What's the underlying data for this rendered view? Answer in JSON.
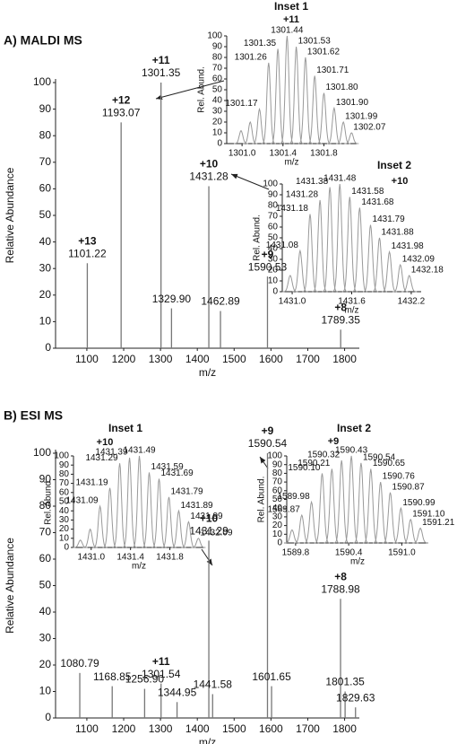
{
  "chart_data": [
    {
      "type": "spectrum",
      "title": "A) MALDI MS",
      "x_label": "m/z",
      "y_label": "Relative Abundance",
      "xlim": [
        1015,
        1840
      ],
      "ylim": [
        0,
        100
      ],
      "xticks": [
        1100,
        1200,
        1300,
        1400,
        1500,
        1600,
        1700,
        1800
      ],
      "yticks": [
        0,
        10,
        20,
        30,
        40,
        50,
        60,
        70,
        80,
        90,
        100
      ],
      "x": [
        1101.22,
        1193.07,
        1301.35,
        1329.9,
        1431.28,
        1462.89,
        1590.53,
        1789.35
      ],
      "values": [
        32,
        85,
        100,
        15,
        61,
        14,
        27,
        7
      ],
      "peak_labels": [
        "1101.22",
        "1193.07",
        "1301.35",
        "1329.90",
        "1431.28",
        "1462.89",
        "1590.53",
        "1789.35"
      ],
      "charges": [
        "+13",
        "+12",
        "+11",
        null,
        "+10",
        null,
        "+9",
        "+8"
      ],
      "color": "#777777"
    },
    {
      "type": "isotope",
      "title": "Inset 1",
      "charge": "+11",
      "x_label": "m/z",
      "y_label": "Rel. Abund.",
      "xlim": [
        1300.85,
        1302.12
      ],
      "ylim": [
        0,
        100
      ],
      "xticks": [
        {
          "value": 1301.0,
          "label": "1301.0"
        },
        1301.4,
        1301.8
      ],
      "yticks": [
        0,
        10,
        20,
        30,
        40,
        50,
        60,
        70,
        80,
        90,
        100
      ],
      "x": [
        1300.99,
        1301.08,
        1301.17,
        1301.26,
        1301.35,
        1301.44,
        1301.53,
        1301.62,
        1301.71,
        1301.8,
        1301.9,
        1301.99,
        1302.07
      ],
      "values": [
        12,
        20,
        32,
        75,
        88,
        100,
        90,
        80,
        63,
        47,
        33,
        20,
        10
      ],
      "peak_labels": [
        null,
        null,
        "1301.17",
        "1301.26",
        "1301.35",
        "1301.44",
        "1301.53",
        "1301.62",
        "1301.71",
        "1301.80",
        "1301.90",
        "1301.99",
        "1302.07"
      ],
      "color": "#999999"
    },
    {
      "type": "isotope",
      "title": "Inset 2",
      "charge": "+10",
      "x_label": "m/z",
      "y_label": "Rel. Abund.",
      "xlim": [
        1430.9,
        1432.3
      ],
      "ylim": [
        0,
        100
      ],
      "xticks": [
        {
          "value": 1431.0,
          "label": "1431.0"
        },
        1431.6,
        1432.2
      ],
      "yticks": [
        0,
        10,
        20,
        30,
        40,
        50,
        60,
        70,
        80,
        90,
        100
      ],
      "x": [
        1430.98,
        1431.08,
        1431.18,
        1431.28,
        1431.38,
        1431.48,
        1431.58,
        1431.68,
        1431.79,
        1431.88,
        1431.98,
        1432.09,
        1432.18
      ],
      "values": [
        15,
        38,
        72,
        85,
        97,
        100,
        88,
        78,
        62,
        50,
        37,
        25,
        15
      ],
      "peak_labels": [
        null,
        "1431.08",
        "1431.18",
        "1431.28",
        "1431.38",
        "1431.48",
        "1431.58",
        "1431.68",
        "1431.79",
        "1431.88",
        "1431.98",
        "1432.09",
        "1432.18"
      ],
      "color": "#999999"
    },
    {
      "type": "spectrum",
      "title": "B) ESI MS",
      "x_label": "m/z",
      "y_label": "Relative Abundance",
      "xlim": [
        1015,
        1840
      ],
      "ylim": [
        0,
        100
      ],
      "xticks": [
        1100,
        1200,
        1300,
        1400,
        1500,
        1600,
        1700,
        1800
      ],
      "yticks": [
        0,
        10,
        20,
        30,
        40,
        50,
        60,
        70,
        80,
        90,
        100
      ],
      "x": [
        1080.79,
        1168.85,
        1256.9,
        1301.54,
        1344.95,
        1431.29,
        1441.58,
        1590.54,
        1601.65,
        1788.98,
        1801.35,
        1829.63
      ],
      "values": [
        17,
        12,
        11,
        13,
        6,
        67,
        9,
        100,
        12,
        45,
        10,
        4
      ],
      "peak_labels": [
        "1080.79",
        "1168.85",
        "1256.90",
        "1301.54",
        "1344.95",
        "1431.29",
        "1441.58",
        "1590.54",
        "1601.65",
        "1788.98",
        "1801.35",
        "1829.63"
      ],
      "charges": [
        null,
        null,
        null,
        "+11",
        null,
        "+10",
        null,
        "+9",
        null,
        "+8",
        null,
        null
      ],
      "color": "#777777"
    },
    {
      "type": "isotope",
      "title": "Inset 1",
      "charge": "+10",
      "x_label": "m/z",
      "y_label": "Rel. Abund.",
      "xlim": [
        1430.82,
        1432.15
      ],
      "ylim": [
        0,
        100
      ],
      "xticks": [
        {
          "value": 1431.0,
          "label": "1431.0"
        },
        1431.4,
        1431.8
      ],
      "yticks": [
        0,
        10,
        20,
        30,
        40,
        50,
        60,
        70,
        80,
        90,
        100
      ],
      "x": [
        1430.89,
        1430.99,
        1431.09,
        1431.19,
        1431.29,
        1431.39,
        1431.49,
        1431.59,
        1431.69,
        1431.79,
        1431.89,
        1431.99,
        1432.09
      ],
      "values": [
        8,
        20,
        45,
        65,
        92,
        98,
        100,
        82,
        75,
        55,
        40,
        28,
        10
      ],
      "peak_labels": [
        null,
        null,
        "1431.09",
        "1431.19",
        "1431.29",
        "1431.39",
        "1431.49",
        "1431.59",
        "1431.69",
        "1431.79",
        "1431.89",
        "1431.99",
        "1432.09"
      ],
      "color": "#999999"
    },
    {
      "type": "isotope",
      "title": "Inset 2",
      "charge": "+9",
      "x_label": "m/z",
      "y_label": "Rel. Abund.",
      "xlim": [
        1589.7,
        1591.3
      ],
      "ylim": [
        0,
        100
      ],
      "xticks": [
        1589.8,
        1590.4,
        {
          "value": 1591.0,
          "label": "1591.0"
        }
      ],
      "yticks": [
        0,
        10,
        20,
        30,
        40,
        50,
        60,
        70,
        80,
        90,
        100
      ],
      "x": [
        1589.76,
        1589.87,
        1589.98,
        1590.1,
        1590.21,
        1590.32,
        1590.43,
        1590.54,
        1590.65,
        1590.76,
        1590.87,
        1590.99,
        1591.1,
        1591.21
      ],
      "values": [
        15,
        32,
        47,
        80,
        85,
        95,
        100,
        92,
        85,
        70,
        58,
        40,
        27,
        17
      ],
      "peak_labels": [
        null,
        "1589.87",
        "1589.98",
        "1590.10",
        "1590.21",
        "1590.32",
        "1590.43",
        "1590.54",
        "1590.65",
        "1590.76",
        "1590.87",
        "1590.99",
        "1591.10",
        "1591.21"
      ],
      "color": "#999999"
    }
  ]
}
